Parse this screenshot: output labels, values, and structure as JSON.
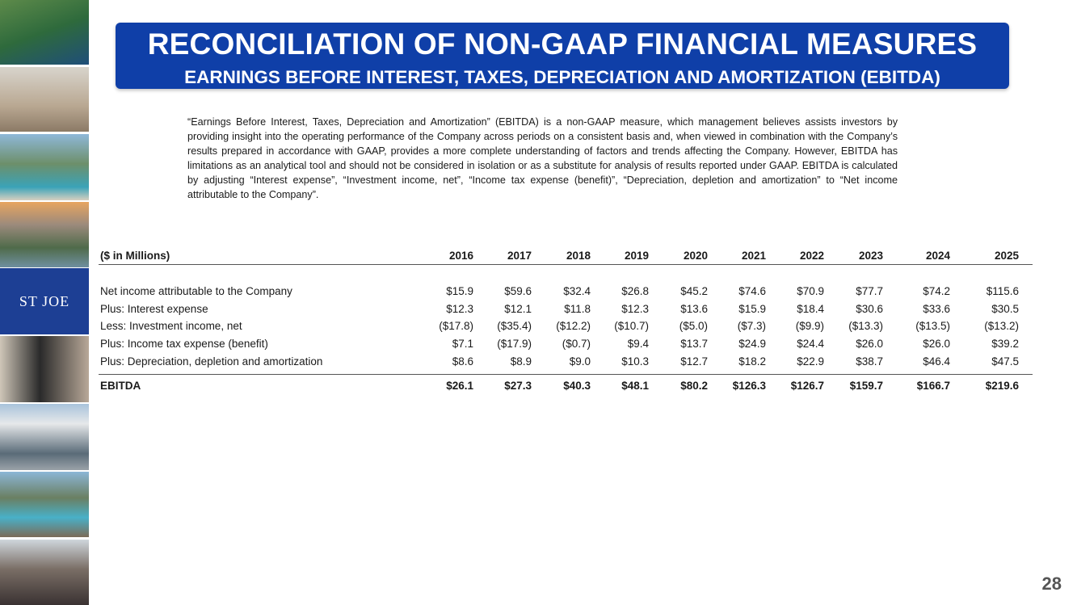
{
  "sidebar": {
    "logo": "ST JOE"
  },
  "header": {
    "title": "RECONCILIATION OF NON-GAAP FINANCIAL MEASURES",
    "subtitle": "EARNINGS BEFORE INTEREST, TAXES, DEPRECIATION AND AMORTIZATION (EBITDA)"
  },
  "description": "“Earnings Before Interest, Taxes, Depreciation and Amortization” (EBITDA) is a non-GAAP measure, which management believes assists investors by providing insight into the operating performance of the Company across periods on a consistent basis and, when viewed in combination with the Company’s results prepared in accordance with GAAP, provides a more complete understanding of factors and trends affecting the Company. However, EBITDA has limitations as an analytical tool and should not be considered in isolation or as a substitute for analysis of results reported under GAAP. EBITDA is calculated by adjusting “Interest expense”, “Investment income, net”, “Income tax expense (benefit)”, “Depreciation, depletion and amortization” to “Net income attributable to the Company”.",
  "table": {
    "columns": [
      "($ in Millions)",
      "2016",
      "2017",
      "2018",
      "2019",
      "2020",
      "2021",
      "2022",
      "2023",
      "2024",
      "2025"
    ],
    "rows": [
      [
        "Net income attributable to the Company",
        "$15.9",
        "$59.6",
        "$32.4",
        "$26.8",
        "$45.2",
        "$74.6",
        "$70.9",
        "$77.7",
        "$74.2",
        "$115.6"
      ],
      [
        "Plus: Interest expense",
        "$12.3",
        "$12.1",
        "$11.8",
        "$12.3",
        "$13.6",
        "$15.9",
        "$18.4",
        "$30.6",
        "$33.6",
        "$30.5"
      ],
      [
        "Less: Investment income, net",
        "($17.8)",
        "($35.4)",
        "($12.2)",
        "($10.7)",
        "($5.0)",
        "($7.3)",
        "($9.9)",
        "($13.3)",
        "($13.5)",
        "($13.2)"
      ],
      [
        "Plus: Income tax expense (benefit)",
        "$7.1",
        "($17.9)",
        "($0.7)",
        "$9.4",
        "$13.7",
        "$24.9",
        "$24.4",
        "$26.0",
        "$26.0",
        "$39.2"
      ],
      [
        "Plus: Depreciation, depletion and amortization",
        "$8.6",
        "$8.9",
        "$9.0",
        "$10.3",
        "$12.7",
        "$18.2",
        "$22.9",
        "$38.7",
        "$46.4",
        "$47.5"
      ]
    ],
    "total": [
      "EBITDA",
      "$26.1",
      "$27.3",
      "$40.3",
      "$48.1",
      "$80.2",
      "$126.3",
      "$126.7",
      "$159.7",
      "$166.7",
      "$219.6"
    ]
  },
  "page_number": "28"
}
